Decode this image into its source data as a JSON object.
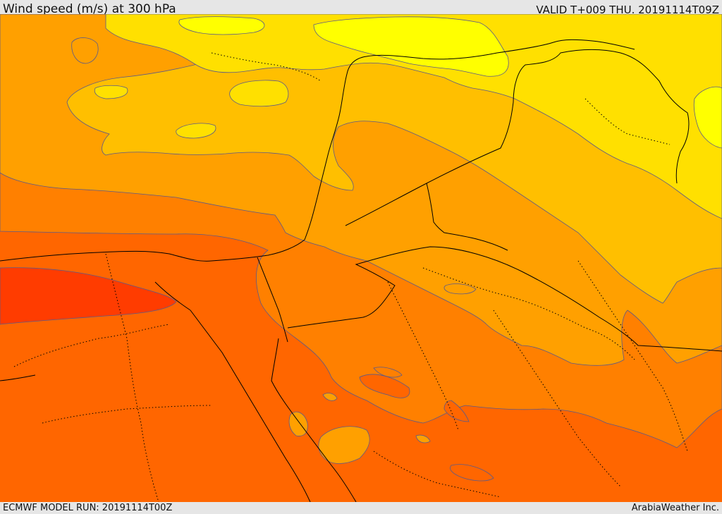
{
  "header": {
    "title": "Wind speed (m/s) at 300 hPa",
    "valid": "VALID T+009 THU. 20191114T09Z"
  },
  "footer": {
    "model_run": "ECMWF MODEL RUN: 20191114T00Z",
    "credit": "ArabiaWeather Inc."
  },
  "map": {
    "field": "wind speed at 300 hPa",
    "colors": {
      "yellow": "#ffff00",
      "yellow_orange": "#ffe000",
      "light_orange": "#ffbf00",
      "orange": "#ffa000",
      "dark_orange": "#ff8000",
      "red_orange": "#ff6600",
      "red": "#ff3c00"
    }
  }
}
